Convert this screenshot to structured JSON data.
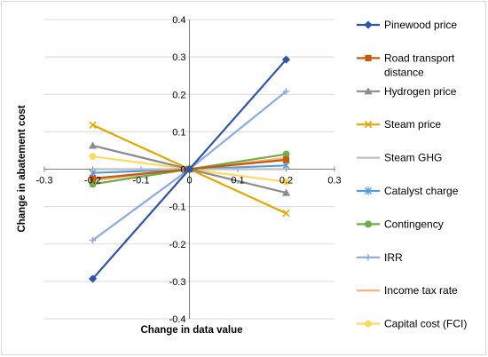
{
  "chart_data": {
    "type": "line",
    "xlabel": "Change in data value",
    "ylabel": "Change in abatement cost",
    "xlim": [
      -0.3,
      0.3
    ],
    "ylim": [
      -0.4,
      0.4
    ],
    "x_ticks": [
      "-0.3",
      "-0.2",
      "-0.1",
      "0",
      "0.1",
      "0.2",
      "0.3"
    ],
    "y_ticks": [
      "0.4",
      "0.3",
      "0.2",
      "0.1",
      "0",
      "-0.1",
      "-0.2",
      "-0.3",
      "-0.4"
    ],
    "grid": "horizontal",
    "legend_position": "right",
    "series": [
      {
        "name": "Pinewood price",
        "color": "#2f55a4",
        "marker": "diamond",
        "points": [
          [
            -0.2,
            -0.293
          ],
          [
            0,
            0
          ],
          [
            0.2,
            0.293
          ]
        ]
      },
      {
        "name": "Road transport distance",
        "color": "#c55a11",
        "marker": "square",
        "points": [
          [
            -0.2,
            -0.025
          ],
          [
            0,
            0
          ],
          [
            0.2,
            0.025
          ]
        ]
      },
      {
        "name": "Hydrogen price",
        "color": "#8c8c8c",
        "marker": "triangle",
        "points": [
          [
            -0.2,
            0.063
          ],
          [
            0,
            0
          ],
          [
            0.2,
            -0.063
          ]
        ]
      },
      {
        "name": "Steam price",
        "color": "#e0a800",
        "marker": "x",
        "points": [
          [
            -0.2,
            0.118
          ],
          [
            0,
            0
          ],
          [
            0.2,
            -0.118
          ]
        ]
      },
      {
        "name": "Steam GHG",
        "color": "#bfbfbf",
        "marker": "none",
        "points": [
          [
            -0.2,
            0.0
          ],
          [
            0,
            0
          ],
          [
            0.2,
            0.0
          ]
        ]
      },
      {
        "name": "Catalyst charge",
        "color": "#5b9bd5",
        "marker": "star",
        "points": [
          [
            -0.2,
            -0.01
          ],
          [
            0,
            0
          ],
          [
            0.2,
            0.01
          ]
        ]
      },
      {
        "name": "Contingency",
        "color": "#70ad47",
        "marker": "circle",
        "points": [
          [
            -0.2,
            -0.04
          ],
          [
            0,
            0
          ],
          [
            0.2,
            0.04
          ]
        ]
      },
      {
        "name": "IRR",
        "color": "#8faadc",
        "marker": "plus",
        "points": [
          [
            -0.2,
            -0.19
          ],
          [
            0,
            0
          ],
          [
            0.2,
            0.208
          ]
        ]
      },
      {
        "name": "Income tax rate",
        "color": "#f4b183",
        "marker": "none",
        "points": [
          [
            -0.2,
            -0.03
          ],
          [
            0,
            0
          ],
          [
            0.2,
            0.03
          ]
        ]
      },
      {
        "name": "Capital cost (FCI)",
        "color": "#ffd966",
        "marker": "circle",
        "points": [
          [
            -0.2,
            0.034
          ],
          [
            0,
            0
          ],
          [
            0.2,
            -0.034
          ]
        ]
      }
    ]
  }
}
